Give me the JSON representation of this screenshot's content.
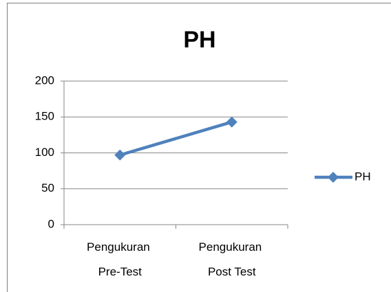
{
  "chart_data": {
    "type": "line",
    "title": "PH",
    "categories": [
      "Pengukuran Pre-Test",
      "Pengukuran Post Test"
    ],
    "series": [
      {
        "name": "PH",
        "color": "#4f81bd",
        "values": [
          97,
          143
        ]
      }
    ],
    "ylim": [
      0,
      200
    ],
    "yticks": [
      0,
      50,
      100,
      150,
      200
    ],
    "grid": true,
    "legend": "right"
  }
}
